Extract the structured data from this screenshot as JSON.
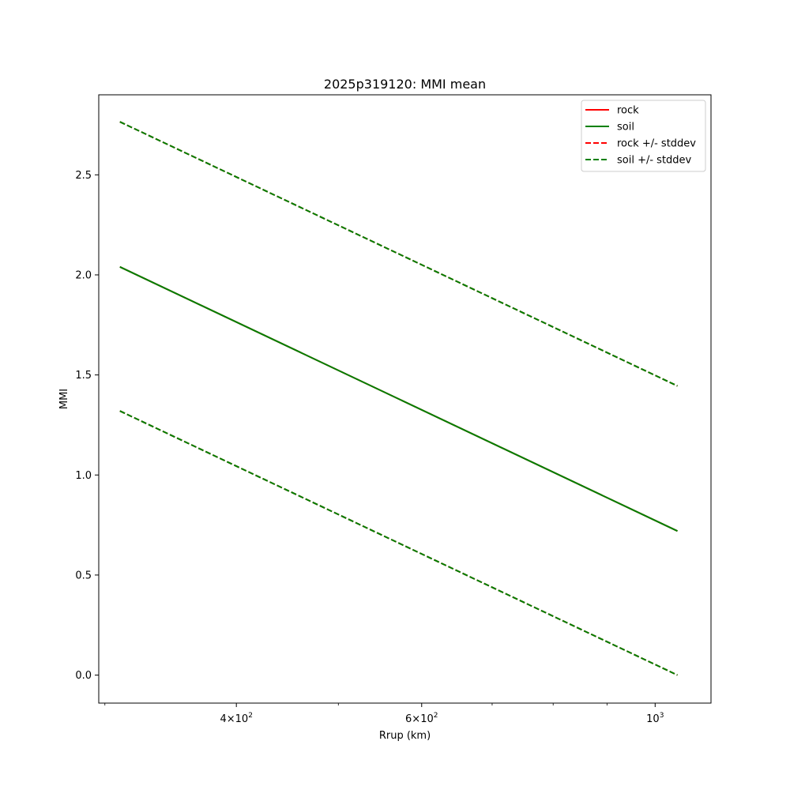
{
  "chart_data": {
    "type": "line",
    "title": "2025p319120: MMI mean",
    "xlabel": "Rrup (km)",
    "ylabel": "MMI",
    "x_scale": "log",
    "xlim": [
      296,
      1130
    ],
    "ylim": [
      -0.14,
      2.9
    ],
    "x_ticks": [
      {
        "value": 400,
        "base": "4×10",
        "exp": "2"
      },
      {
        "value": 600,
        "base": "6×10",
        "exp": "2"
      },
      {
        "value": 1000,
        "base": "10",
        "exp": "3"
      }
    ],
    "x_minor_ticks": [
      300,
      500,
      700,
      800,
      900
    ],
    "y_ticks": [
      {
        "value": 0.0,
        "label": "0.0"
      },
      {
        "value": 0.5,
        "label": "0.5"
      },
      {
        "value": 1.0,
        "label": "1.0"
      },
      {
        "value": 1.5,
        "label": "1.5"
      },
      {
        "value": 2.0,
        "label": "2.0"
      },
      {
        "value": 2.5,
        "label": "2.5"
      }
    ],
    "grid": false,
    "legend_position": "top-right",
    "series": [
      {
        "name": "rock",
        "color": "#ff0000",
        "style": "solid",
        "x": [
          310,
          1050
        ],
        "y": [
          2.04,
          0.72
        ]
      },
      {
        "name": "soil",
        "color": "#008000",
        "style": "solid",
        "x": [
          310,
          1050
        ],
        "y": [
          2.04,
          0.72
        ]
      },
      {
        "name": "rock +/- stddev",
        "color": "#ff0000",
        "style": "dashed",
        "x": [
          310,
          1050
        ],
        "y": [
          2.765,
          1.445
        ]
      },
      {
        "name": "rock +/- stddev",
        "color": "#ff0000",
        "style": "dashed",
        "x": [
          310,
          1050
        ],
        "y": [
          1.32,
          0.0
        ],
        "legend": false
      },
      {
        "name": "soil +/- stddev",
        "color": "#008000",
        "style": "dashed",
        "x": [
          310,
          1050
        ],
        "y": [
          2.765,
          1.445
        ]
      },
      {
        "name": "soil +/- stddev",
        "color": "#008000",
        "style": "dashed",
        "x": [
          310,
          1050
        ],
        "y": [
          1.32,
          0.0
        ],
        "legend": false
      }
    ]
  }
}
